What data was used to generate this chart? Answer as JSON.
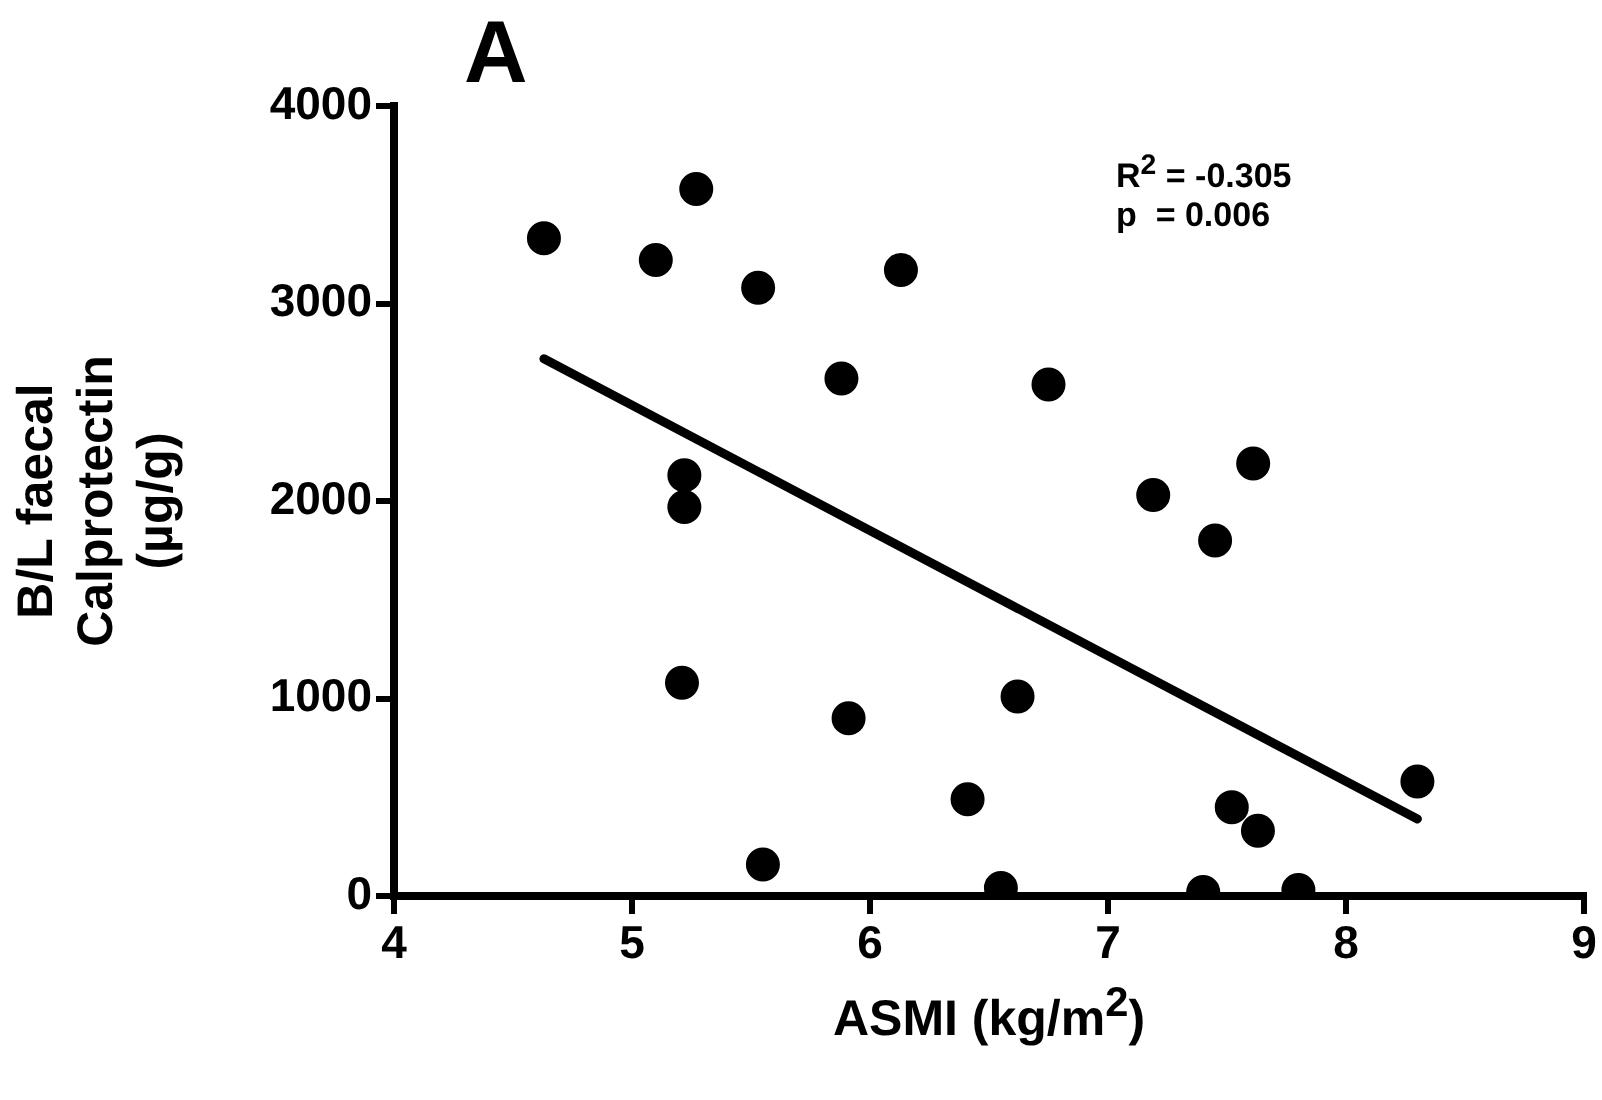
{
  "chart_data": {
    "type": "scatter",
    "title": "A",
    "xlabel": "ASMI (kg/m$^{2}$)",
    "ylabel": "B/L faecal\nCalprotectin\n(µg/g)",
    "annotations": [
      "R$^{2}$ = -0.305",
      "p  = 0.006"
    ],
    "x": [
      4.63,
      5.1,
      5.27,
      5.53,
      6.13,
      5.88,
      5.22,
      5.22,
      5.21,
      5.91,
      5.55,
      6.41,
      6.75,
      7.19,
      7.61,
      7.45,
      6.62,
      6.55,
      7.52,
      7.63,
      7.4,
      7.8,
      8.3
    ],
    "series": [
      {
        "color": "#000000",
        "marker": "circle",
        "values": [
          3330,
          3220,
          3580,
          3080,
          3170,
          2620,
          2130,
          1970,
          1080,
          900,
          160,
          490,
          2590,
          2030,
          2190,
          1800,
          1010,
          40,
          450,
          330,
          20,
          30,
          580
        ]
      },
      {
        "type": "line",
        "color": "#000000",
        "marker": "none",
        "x": [
          4.63,
          8.3
        ],
        "values": [
          2720,
          390
        ]
      }
    ],
    "xlim": [
      4,
      9
    ],
    "ylim": [
      0,
      4000
    ],
    "xticks": [
      4,
      5,
      6,
      7,
      8,
      9
    ],
    "yticks": [
      0,
      1000,
      2000,
      3000,
      4000
    ],
    "grid": false
  }
}
